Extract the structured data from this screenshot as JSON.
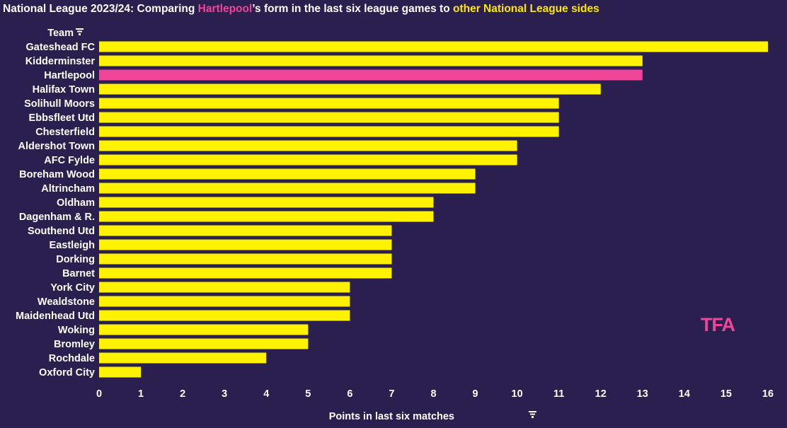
{
  "title": {
    "prefix": "National League 2023/24: Comparing ",
    "highlight_team": "Hartlepool",
    "middle": "’s form in the last six league games to ",
    "other": "other National League sides"
  },
  "colors": {
    "background": "#2a1f4e",
    "bar": "#fff200",
    "highlight": "#f0469a",
    "text": "#ffffff",
    "logo": "#f0469a"
  },
  "logo_text": "TFA",
  "chart_data": {
    "type": "bar",
    "orientation": "horizontal",
    "title": "National League 2023/24: Comparing Hartlepool’s form in the last six league games to other National League sides",
    "ylabel": "Team",
    "xlabel": "Points in last six matches",
    "xlim": [
      0,
      16
    ],
    "xticks": [
      0,
      1,
      2,
      3,
      4,
      5,
      6,
      7,
      8,
      9,
      10,
      11,
      12,
      13,
      14,
      15,
      16
    ],
    "highlight": "Hartlepool",
    "grid": false,
    "categories": [
      "Gateshead FC",
      "Kidderminster",
      "Hartlepool",
      "Halifax Town",
      "Solihull Moors",
      "Ebbsfleet Utd",
      "Chesterfield",
      "Aldershot Town",
      "AFC Fylde",
      "Boreham Wood",
      "Altrincham",
      "Oldham",
      "Dagenham & R.",
      "Southend Utd",
      "Eastleigh",
      "Dorking",
      "Barnet",
      "York City",
      "Wealdstone",
      "Maidenhead Utd",
      "Woking",
      "Bromley",
      "Rochdale",
      "Oxford City"
    ],
    "values": [
      16,
      13,
      13,
      12,
      11,
      11,
      11,
      10,
      10,
      9,
      9,
      8,
      8,
      7,
      7,
      7,
      7,
      6,
      6,
      6,
      5,
      5,
      4,
      1
    ]
  }
}
